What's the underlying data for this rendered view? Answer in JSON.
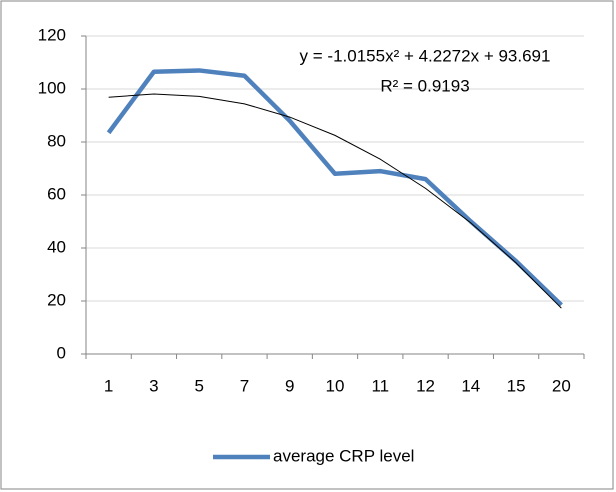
{
  "chart_data": {
    "type": "line",
    "categories": [
      "1",
      "3",
      "5",
      "7",
      "9",
      "10",
      "11",
      "12",
      "14",
      "15",
      "20"
    ],
    "series": [
      {
        "name": "average CRP level",
        "color": "#4f81bd",
        "values": [
          83.5,
          106.5,
          107,
          105,
          88,
          68,
          69,
          66,
          50,
          35,
          18.5
        ]
      }
    ],
    "trendline": {
      "color": "#000000",
      "equation": "y = -1.0155x² + 4.2272x + 93.691",
      "r_squared": "R² = 0.9193",
      "values": [
        96.9,
        98.1,
        97.2,
        94.4,
        89.4,
        82.5,
        73.5,
        62.5,
        49.5,
        34.4,
        17.3
      ]
    },
    "ylim": [
      0,
      120
    ],
    "yticks": [
      0,
      20,
      40,
      60,
      80,
      100,
      120
    ],
    "grid": true,
    "legend": "bottom"
  }
}
